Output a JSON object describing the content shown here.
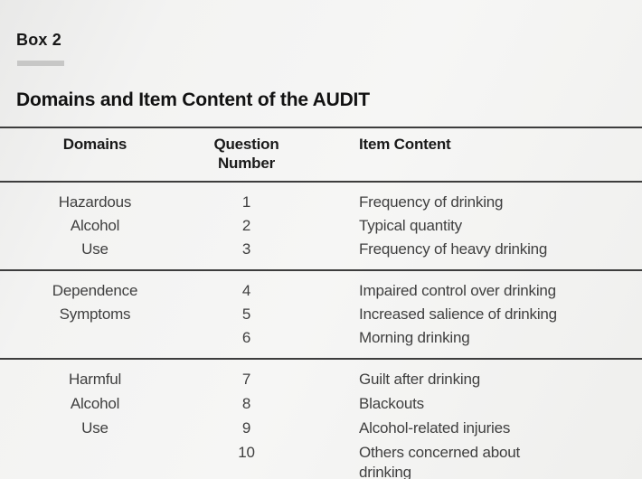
{
  "box": {
    "label": "Box 2"
  },
  "title": "Domains and Item Content of the AUDIT",
  "table": {
    "headers": {
      "domains": "Domains",
      "question_line1": "Question",
      "question_line2": "Number",
      "item_content": "Item Content"
    },
    "groups": [
      {
        "rows": [
          {
            "domain": "Hazardous",
            "number": "1",
            "content": "Frequency of drinking"
          },
          {
            "domain": "Alcohol",
            "number": "2",
            "content": "Typical quantity"
          },
          {
            "domain": "Use",
            "number": "3",
            "content": "Frequency of heavy drinking"
          }
        ]
      },
      {
        "rows": [
          {
            "domain": "Dependence",
            "number": "4",
            "content": "Impaired control over drinking"
          },
          {
            "domain": "Symptoms",
            "number": "5",
            "content": "Increased salience of drinking"
          },
          {
            "domain": "",
            "number": "6",
            "content": "Morning drinking"
          }
        ]
      },
      {
        "rows": [
          {
            "domain": "Harmful",
            "number": "7",
            "content": "Guilt after drinking"
          },
          {
            "domain": "Alcohol",
            "number": "8",
            "content": "Blackouts"
          },
          {
            "domain": "Use",
            "number": "9",
            "content": "Alcohol-related injuries"
          },
          {
            "domain": "",
            "number": "10",
            "content": "Others concerned about\ndrinking"
          }
        ]
      }
    ]
  },
  "colors": {
    "background": "#f2f2f0",
    "rule": "#3d3d3d",
    "body_text": "#3f3f3f",
    "heading_text": "#121212",
    "box_bar": "#c7c7c6"
  }
}
